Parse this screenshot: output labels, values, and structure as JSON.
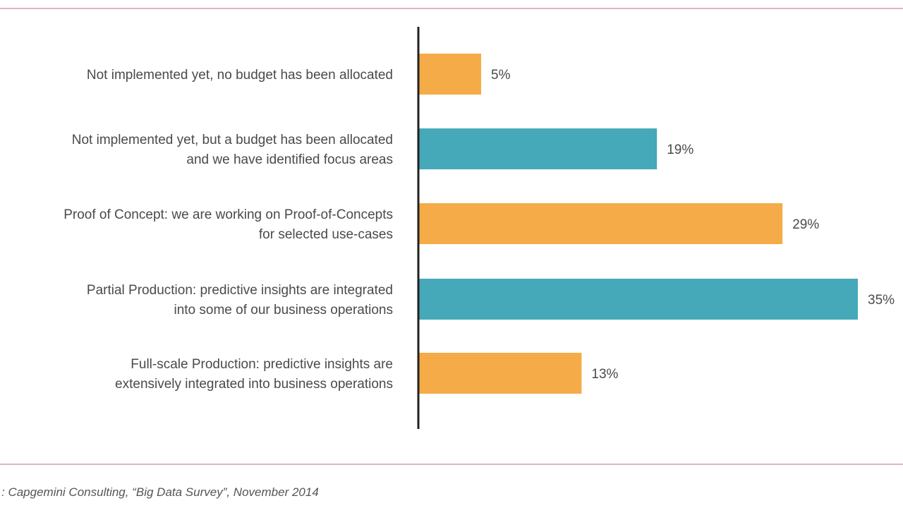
{
  "colors": {
    "rule": "#dcb6c3",
    "axis": "#222222",
    "orange": "#f5ab47",
    "teal": "#45a9b9"
  },
  "source": ": Capgemini Consulting, “Big Data Survey”, November 2014",
  "chart_data": {
    "type": "bar",
    "orientation": "horizontal",
    "xlim": [
      0,
      35
    ],
    "grid": false,
    "bars": [
      {
        "label_lines": [
          "Not implemented yet, no budget has been allocated"
        ],
        "value": 5,
        "value_label": "5%",
        "color": "#f5ab47"
      },
      {
        "label_lines": [
          "Not implemented yet, but a budget has been allocated",
          "and we have identified focus areas"
        ],
        "value": 19,
        "value_label": "19%",
        "color": "#45a9b9"
      },
      {
        "label_lines": [
          "Proof of Concept: we are working on Proof-of-Concepts",
          "for selected use-cases"
        ],
        "value": 29,
        "value_label": "29%",
        "color": "#f5ab47"
      },
      {
        "label_lines": [
          "Partial Production: predictive insights are integrated",
          "into some of our business operations"
        ],
        "value": 35,
        "value_label": "35%",
        "color": "#45a9b9"
      },
      {
        "label_lines": [
          "Full-scale Production: predictive insights are",
          "extensively integrated into business operations"
        ],
        "value": 13,
        "value_label": "13%",
        "color": "#f5ab47"
      }
    ]
  }
}
